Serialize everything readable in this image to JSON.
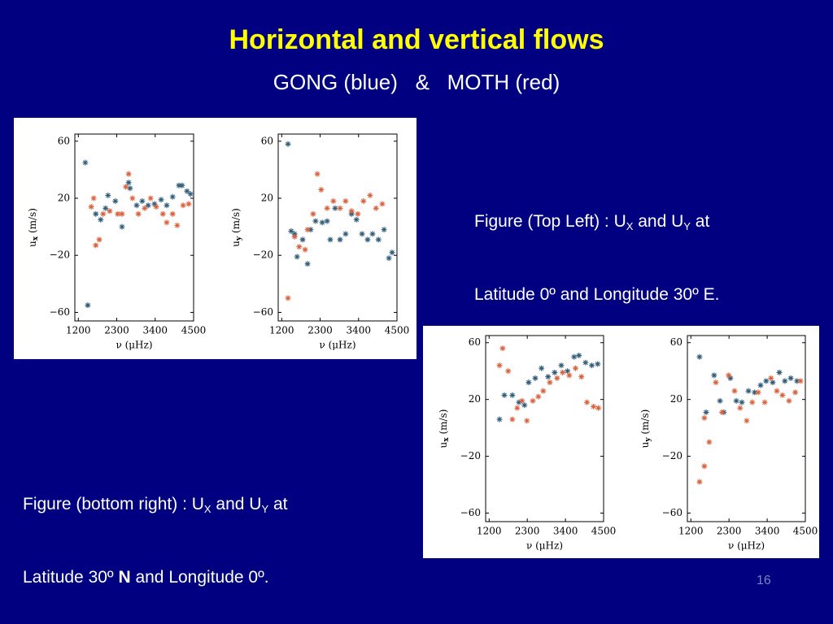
{
  "slide": {
    "title": "Horizontal and vertical flows",
    "subtitle": "GONG (blue)   &   MOTH (red)",
    "captions": [
      {
        "lines": [
          [
            "Figure (Top Left) : U",
            "X",
            " and U",
            "Y",
            " at"
          ],
          [
            "Latitude 0º and Longitude 30º E."
          ]
        ]
      },
      {
        "lines": [
          [
            "Figure (bottom right) : U",
            "X",
            " and U",
            "Y",
            " at"
          ],
          [
            "Latitude 30º ",
            "N",
            " and Longitude 0º."
          ]
        ]
      }
    ],
    "page_number": "16"
  },
  "chart_data": [
    {
      "type": "scatter",
      "xlabel": "ν (μHz)",
      "ylabel": [
        "u",
        "x",
        " (m/s)"
      ],
      "xlim": [
        1100,
        4500
      ],
      "xticks": [
        1200,
        2300,
        3400,
        4500
      ],
      "ylim": [
        -66,
        65
      ],
      "yticks": [
        60,
        20,
        {
          "value": -20,
          "label": "−20"
        },
        {
          "value": -60,
          "label": "−60"
        }
      ],
      "series": [
        {
          "color": "#2e5b78",
          "x": [
            1400,
            1470,
            1700,
            1840,
            1980,
            2050,
            2260,
            2450,
            2640,
            2680,
            2870,
            3030,
            3200,
            3380,
            3570,
            3730,
            3900,
            4080,
            4170,
            4310,
            4410
          ],
          "values": [
            45,
            -55,
            9,
            5,
            13,
            22,
            18,
            0,
            31,
            27,
            15,
            18,
            15,
            16,
            19,
            15,
            21,
            29,
            29,
            25,
            23
          ]
        },
        {
          "color": "#d9603b",
          "x": [
            1570,
            1640,
            1700,
            1800,
            1910,
            2100,
            2330,
            2450,
            2560,
            2640,
            2750,
            2920,
            3100,
            3270,
            3430,
            3620,
            3730,
            3900,
            4030,
            4200,
            4360
          ],
          "values": [
            14,
            20,
            -13,
            -9,
            9,
            11,
            9,
            9,
            28,
            37,
            20,
            9,
            13,
            20,
            14,
            9,
            3,
            9,
            1,
            15,
            16
          ]
        }
      ]
    },
    {
      "type": "scatter",
      "xlabel": "ν (μHz)",
      "ylabel": [
        "u",
        "y",
        " (m/s)"
      ],
      "xlim": [
        1100,
        4500
      ],
      "xticks": [
        1200,
        2300,
        3400,
        4500
      ],
      "ylim": [
        -66,
        65
      ],
      "yticks": [
        60,
        20,
        {
          "value": -20,
          "label": "−20"
        },
        {
          "value": -60,
          "label": "−60"
        }
      ],
      "series": [
        {
          "color": "#2e5b78",
          "x": [
            1380,
            1470,
            1570,
            1640,
            1800,
            1940,
            2030,
            2170,
            2360,
            2500,
            2590,
            2730,
            2870,
            3030,
            3200,
            3340,
            3500,
            3660,
            3800,
            3970,
            4130,
            4270,
            4360
          ],
          "values": [
            58,
            -3,
            -5,
            -21,
            -9,
            -26,
            -2,
            4,
            3,
            4,
            -9,
            13,
            -9,
            -5,
            9,
            5,
            -5,
            -9,
            -5,
            -9,
            -2,
            -22,
            -18
          ]
        },
        {
          "color": "#d9603b",
          "x": [
            1380,
            1570,
            1700,
            1870,
            1940,
            2100,
            2220,
            2330,
            2500,
            2680,
            2870,
            3030,
            3200,
            3380,
            3540,
            3730,
            3900,
            4080
          ],
          "values": [
            -50,
            -7,
            -14,
            -16,
            -2,
            9,
            37,
            26,
            13,
            18,
            13,
            18,
            11,
            9,
            18,
            22,
            13,
            16
          ]
        }
      ]
    },
    {
      "type": "scatter",
      "xlabel": "ν (μHz)",
      "ylabel": [
        "u",
        "x",
        " (m/s)"
      ],
      "xlim": [
        1100,
        4500
      ],
      "xticks": [
        1200,
        2300,
        3400,
        4500
      ],
      "ylim": [
        -66,
        65
      ],
      "yticks": [
        60,
        20,
        {
          "value": -20,
          "label": "−20"
        },
        {
          "value": -60,
          "label": "−60"
        }
      ],
      "series": [
        {
          "color": "#2e5b78",
          "x": [
            1500,
            1640,
            1870,
            2060,
            2220,
            2340,
            2530,
            2710,
            2900,
            3090,
            3280,
            3460,
            3650,
            3790,
            3980,
            4160,
            4330
          ],
          "values": [
            6,
            23,
            23,
            18,
            16,
            32,
            35,
            42,
            36,
            39,
            44,
            40,
            50,
            51,
            46,
            44,
            45
          ]
        },
        {
          "color": "#d9603b",
          "x": [
            1500,
            1590,
            1750,
            1870,
            2010,
            2150,
            2290,
            2460,
            2620,
            2760,
            2950,
            3160,
            3320,
            3510,
            3690,
            3860,
            4020,
            4210,
            4350
          ],
          "values": [
            44,
            56,
            40,
            6,
            14,
            19,
            5,
            19,
            22,
            26,
            32,
            35,
            39,
            37,
            42,
            36,
            18,
            15,
            14
          ]
        }
      ]
    },
    {
      "type": "scatter",
      "xlabel": "ν (μHz)",
      "ylabel": [
        "u",
        "y",
        " (m/s)"
      ],
      "xlim": [
        1100,
        4500
      ],
      "xticks": [
        1200,
        2300,
        3400,
        4500
      ],
      "ylim": [
        -66,
        65
      ],
      "yticks": [
        60,
        20,
        {
          "value": -20,
          "label": "−20"
        },
        {
          "value": -60,
          "label": "−60"
        }
      ],
      "series": [
        {
          "color": "#2e5b78",
          "x": [
            1450,
            1640,
            1870,
            2040,
            2150,
            2340,
            2510,
            2670,
            2860,
            3040,
            3210,
            3370,
            3560,
            3750,
            3910,
            4080,
            4260
          ],
          "values": [
            50,
            11,
            37,
            19,
            11,
            35,
            19,
            18,
            26,
            25,
            30,
            33,
            32,
            39,
            33,
            35,
            33
          ]
        },
        {
          "color": "#d9603b",
          "x": [
            1450,
            1590,
            1730,
            1590,
            1920,
            2100,
            2290,
            2460,
            2620,
            2810,
            2970,
            3140,
            3330,
            3510,
            3680,
            3840,
            4030,
            4210,
            4360
          ],
          "values": [
            -38,
            -27,
            -10,
            7,
            32,
            11,
            37,
            26,
            14,
            5,
            18,
            25,
            18,
            35,
            26,
            23,
            19,
            25,
            33
          ]
        }
      ]
    }
  ]
}
